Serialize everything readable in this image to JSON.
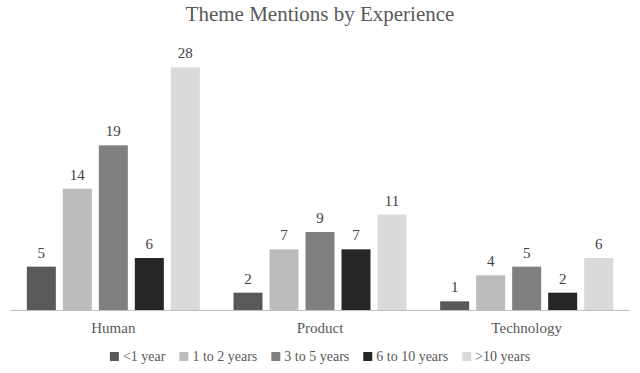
{
  "chart_data": {
    "type": "bar",
    "title": "Theme Mentions by Experience",
    "categories": [
      "Human",
      "Product",
      "Technology"
    ],
    "series": [
      {
        "name": "<1 year",
        "color": "#595959",
        "values": [
          5,
          2,
          1
        ]
      },
      {
        "name": "1 to 2 years",
        "color": "#bcbcbc",
        "values": [
          14,
          7,
          4
        ]
      },
      {
        "name": "3 to 5 years",
        "color": "#808080",
        "values": [
          19,
          9,
          5
        ]
      },
      {
        "name": "6 to 10 years",
        "color": "#262626",
        "values": [
          6,
          7,
          2
        ]
      },
      {
        "name": ">10 years",
        "color": "#dadada",
        "values": [
          28,
          11,
          6
        ]
      }
    ],
    "ylim": [
      0,
      30
    ],
    "data_labels": true,
    "tick_labels": "x",
    "legend": "bottom",
    "grid": false
  }
}
